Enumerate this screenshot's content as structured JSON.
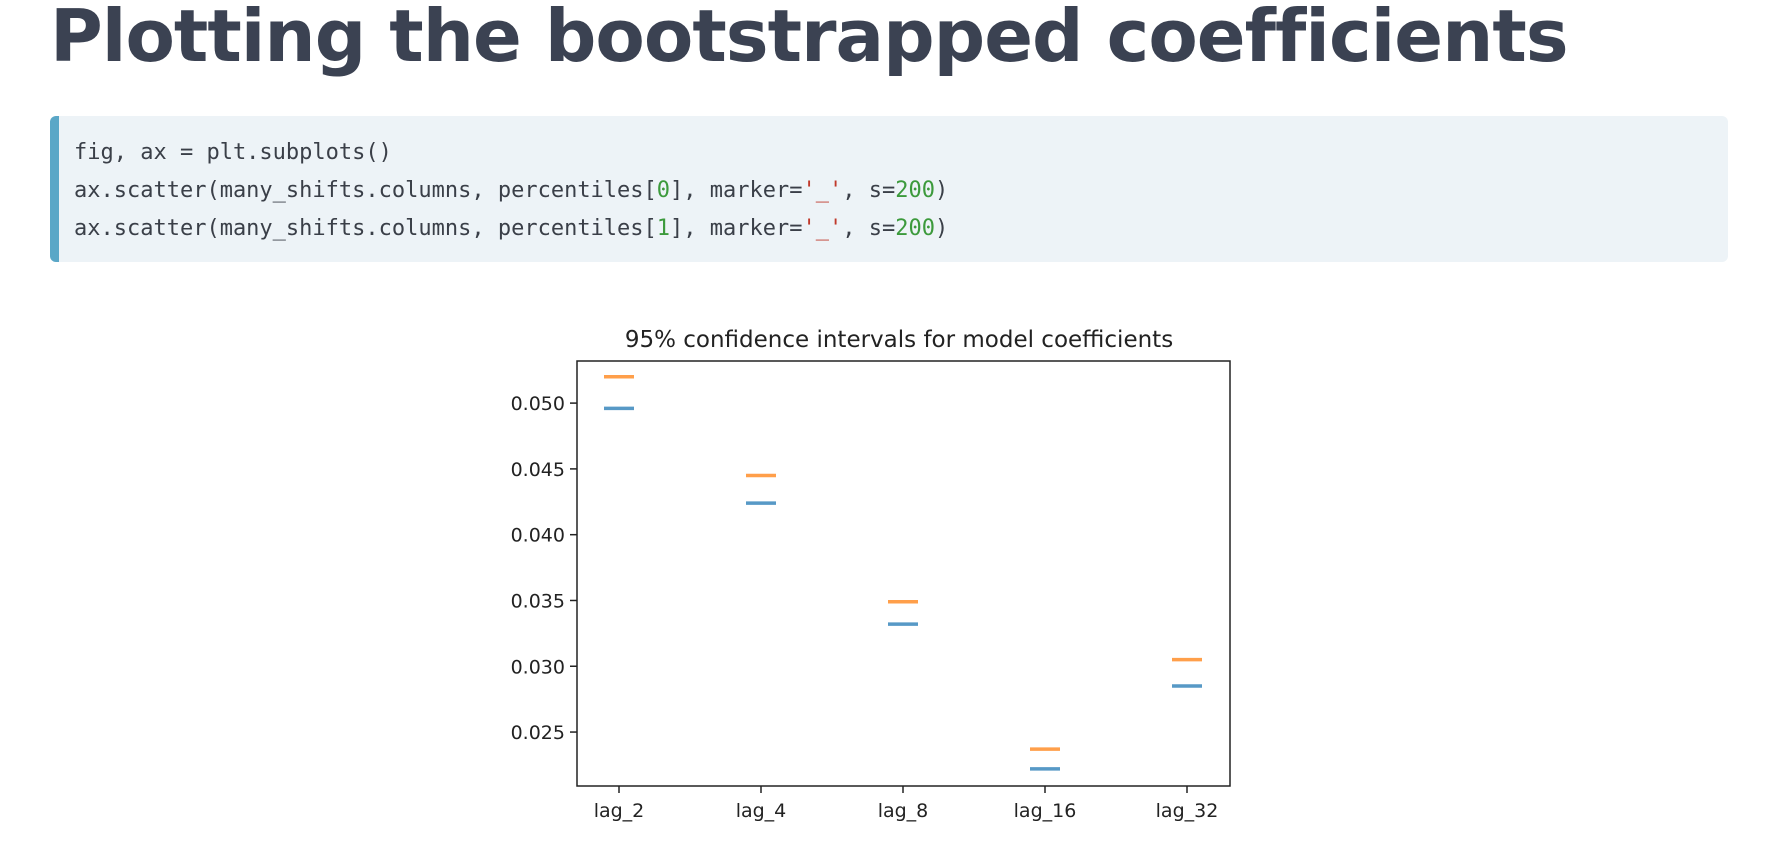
{
  "page": {
    "heading": "Plotting the bootstrapped coefficients"
  },
  "code": {
    "lines": [
      [
        {
          "t": "fig, ax = plt.subplots()",
          "c": "plain"
        }
      ],
      [
        {
          "t": "ax.scatter(many_shifts.columns, percentiles[",
          "c": "plain"
        },
        {
          "t": "0",
          "c": "num"
        },
        {
          "t": "], marker=",
          "c": "plain"
        },
        {
          "t": "'_'",
          "c": "str"
        },
        {
          "t": ", s=",
          "c": "plain"
        },
        {
          "t": "200",
          "c": "num"
        },
        {
          "t": ")",
          "c": "plain"
        }
      ],
      [
        {
          "t": "ax.scatter(many_shifts.columns, percentiles[",
          "c": "plain"
        },
        {
          "t": "1",
          "c": "num"
        },
        {
          "t": "], marker=",
          "c": "plain"
        },
        {
          "t": "'_'",
          "c": "str"
        },
        {
          "t": ", s=",
          "c": "plain"
        },
        {
          "t": "200",
          "c": "num"
        },
        {
          "t": ")",
          "c": "plain"
        }
      ]
    ]
  },
  "chart_data": {
    "type": "scatter",
    "title": "95% confidence intervals for model coefficients",
    "marker": "_",
    "categories": [
      "lag_2",
      "lag_4",
      "lag_8",
      "lag_16",
      "lag_32"
    ],
    "series": [
      {
        "values": [
          0.0496,
          0.0424,
          0.0332,
          0.0222,
          0.0285
        ],
        "color": "#1f77b4"
      },
      {
        "values": [
          0.052,
          0.0445,
          0.0349,
          0.0237,
          0.0305
        ],
        "color": "#ff7f0e"
      }
    ],
    "ylim": [
      0.0209,
      0.0532
    ],
    "yticks": [
      "0.025",
      "0.030",
      "0.035",
      "0.040",
      "0.045",
      "0.050"
    ],
    "ytick_values": [
      0.025,
      0.03,
      0.035,
      0.04,
      0.045,
      0.05
    ],
    "grid": false
  }
}
